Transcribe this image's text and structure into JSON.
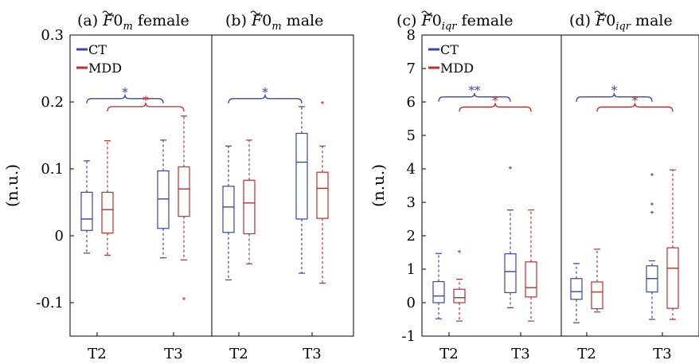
{
  "colors": {
    "CT": "#3a45a8",
    "MDD": "#b8312f",
    "axis": "#000000"
  },
  "chart_data": [
    {
      "type": "box",
      "panel": "a",
      "title": "(a) F̃0_m female",
      "title_parts": {
        "prefix": "(a) ",
        "main": "F0",
        "sub": "m",
        "suffix": " female"
      },
      "ylabel": "(n.u.)",
      "ylim": [
        -0.15,
        0.3
      ],
      "yticks": [
        -0.1,
        0,
        0.1,
        0.2,
        0.3
      ],
      "ytick_labels": [
        "-0.1",
        "0",
        "0.1",
        "0.2",
        "0.3"
      ],
      "categories": [
        "T2",
        "T3"
      ],
      "legend": {
        "entries": [
          "CT",
          "MDD"
        ],
        "position": "top-left"
      },
      "series": [
        {
          "name": "CT",
          "boxes": [
            {
              "category": "T2",
              "whisker_low": -0.026,
              "q1": 0.008,
              "median": 0.025,
              "q3": 0.065,
              "whisker_high": 0.112,
              "outliers": []
            },
            {
              "category": "T3",
              "whisker_low": -0.033,
              "q1": 0.011,
              "median": 0.055,
              "q3": 0.097,
              "whisker_high": 0.143,
              "outliers": []
            }
          ]
        },
        {
          "name": "MDD",
          "boxes": [
            {
              "category": "T2",
              "whisker_low": -0.029,
              "q1": 0.004,
              "median": 0.039,
              "q3": 0.065,
              "whisker_high": 0.142,
              "outliers": []
            },
            {
              "category": "T3",
              "whisker_low": -0.036,
              "q1": 0.029,
              "median": 0.07,
              "q3": 0.103,
              "whisker_high": 0.179,
              "outliers": [
                -0.094
              ]
            }
          ]
        }
      ],
      "annotations": [
        {
          "series": "CT",
          "label": "*",
          "level": 0.205
        },
        {
          "series": "MDD",
          "label": "*",
          "level": 0.193
        }
      ]
    },
    {
      "type": "box",
      "panel": "b",
      "title": "(b) F̃0_m male",
      "title_parts": {
        "prefix": "(b) ",
        "main": "F0",
        "sub": "m",
        "suffix": " male"
      },
      "ylim": [
        -0.15,
        0.3
      ],
      "categories": [
        "T2",
        "T3"
      ],
      "series": [
        {
          "name": "CT",
          "boxes": [
            {
              "category": "T2",
              "whisker_low": -0.066,
              "q1": 0.005,
              "median": 0.043,
              "q3": 0.074,
              "whisker_high": 0.134,
              "outliers": []
            },
            {
              "category": "T3",
              "whisker_low": -0.056,
              "q1": 0.025,
              "median": 0.11,
              "q3": 0.153,
              "whisker_high": 0.193,
              "outliers": []
            }
          ]
        },
        {
          "name": "MDD",
          "boxes": [
            {
              "category": "T2",
              "whisker_low": -0.042,
              "q1": 0.003,
              "median": 0.049,
              "q3": 0.083,
              "whisker_high": 0.143,
              "outliers": []
            },
            {
              "category": "T3",
              "whisker_low": -0.071,
              "q1": 0.026,
              "median": 0.071,
              "q3": 0.095,
              "whisker_high": 0.134,
              "outliers": [
                0.199
              ]
            }
          ]
        }
      ],
      "annotations": [
        {
          "series": "CT",
          "label": "*",
          "level": 0.205
        }
      ]
    },
    {
      "type": "box",
      "panel": "c",
      "title": "(c) F̃0_iqr female",
      "title_parts": {
        "prefix": "(c) ",
        "main": "F0",
        "sub": "iqr",
        "suffix": " female"
      },
      "ylabel": "(n.u.)",
      "ylim": [
        -1,
        8
      ],
      "yticks": [
        -1,
        0,
        1,
        2,
        3,
        4,
        5,
        6,
        7,
        8
      ],
      "ytick_labels": [
        "-1",
        "0",
        "1",
        "2",
        "3",
        "4",
        "5",
        "6",
        "7",
        "8"
      ],
      "categories": [
        "T2",
        "T3"
      ],
      "legend": {
        "entries": [
          "CT",
          "MDD"
        ],
        "position": "top-left"
      },
      "series": [
        {
          "name": "CT",
          "boxes": [
            {
              "category": "T2",
              "whisker_low": -0.48,
              "q1": 0.0,
              "median": 0.2,
              "q3": 0.63,
              "whisker_high": 1.47,
              "outliers": []
            },
            {
              "category": "T3",
              "whisker_low": -0.15,
              "q1": 0.3,
              "median": 0.93,
              "q3": 1.46,
              "whisker_high": 2.77,
              "outliers": [
                4.03
              ]
            }
          ]
        },
        {
          "name": "MDD",
          "boxes": [
            {
              "category": "T2",
              "whisker_low": -0.55,
              "q1": 0.0,
              "median": 0.15,
              "q3": 0.4,
              "whisker_high": 0.7,
              "outliers": [
                1.53
              ]
            },
            {
              "category": "T3",
              "whisker_low": -0.55,
              "q1": 0.17,
              "median": 0.45,
              "q3": 1.22,
              "whisker_high": 2.77,
              "outliers": []
            }
          ]
        }
      ],
      "annotations": [
        {
          "series": "CT",
          "label": "**",
          "level": 6.15
        },
        {
          "series": "MDD",
          "label": "*",
          "level": 5.85
        }
      ]
    },
    {
      "type": "box",
      "panel": "d",
      "title": "(d) F̃0_iqr male",
      "title_parts": {
        "prefix": "(d) ",
        "main": "F0",
        "sub": "iqr",
        "suffix": " male"
      },
      "ylim": [
        -1,
        8
      ],
      "categories": [
        "T2",
        "T3"
      ],
      "series": [
        {
          "name": "CT",
          "boxes": [
            {
              "category": "T2",
              "whisker_low": -0.6,
              "q1": 0.1,
              "median": 0.33,
              "q3": 0.72,
              "whisker_high": 1.17,
              "outliers": []
            },
            {
              "category": "T3",
              "whisker_low": -0.5,
              "q1": 0.32,
              "median": 0.72,
              "q3": 1.1,
              "whisker_high": 1.25,
              "outliers": [
                2.7,
                2.95,
                3.83
              ]
            }
          ]
        },
        {
          "name": "MDD",
          "boxes": [
            {
              "category": "T2",
              "whisker_low": -0.28,
              "q1": -0.18,
              "median": 0.32,
              "q3": 0.62,
              "whisker_high": 1.6,
              "outliers": []
            },
            {
              "category": "T3",
              "whisker_low": -0.5,
              "q1": -0.17,
              "median": 1.03,
              "q3": 1.64,
              "whisker_high": 3.97,
              "outliers": []
            }
          ]
        }
      ],
      "annotations": [
        {
          "series": "CT",
          "label": "*",
          "level": 6.15
        },
        {
          "series": "MDD",
          "label": "*",
          "level": 5.85
        }
      ]
    }
  ]
}
